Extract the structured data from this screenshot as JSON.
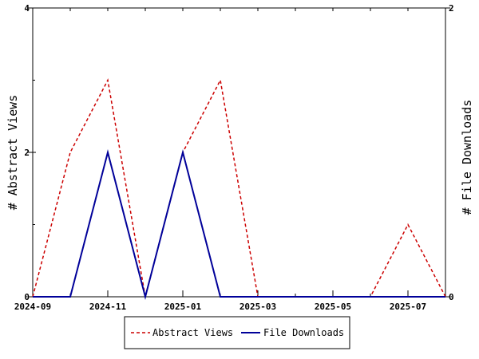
{
  "chart_data": {
    "type": "line",
    "x": [
      "2024-09",
      "2024-10",
      "2024-11",
      "2024-12",
      "2025-01",
      "2025-02",
      "2025-03",
      "2025-04",
      "2025-05",
      "2025-06",
      "2025-07",
      "2025-08"
    ],
    "x_tick_labels": [
      "2024-09",
      "2024-11",
      "2025-01",
      "2025-03",
      "2025-05",
      "2025-07"
    ],
    "series": [
      {
        "name": "Abstract Views",
        "axis": "left",
        "color": "#cc0000",
        "dash": "dashed",
        "values": [
          0,
          2,
          3,
          0,
          2,
          3,
          0,
          0,
          0,
          0,
          1,
          0
        ]
      },
      {
        "name": "File Downloads",
        "axis": "right",
        "color": "#000099",
        "dash": "solid",
        "values": [
          0,
          0,
          1,
          0,
          1,
          0,
          0,
          0,
          0,
          0,
          0,
          0
        ]
      }
    ],
    "ylabel": "# Abstract Views",
    "ylabel_right": "# File Downloads",
    "ylim": [
      0,
      4
    ],
    "ylim_right": [
      0,
      2
    ],
    "y_ticks": [
      "0",
      "2",
      "4"
    ],
    "y_ticks_right": [
      "0",
      "2"
    ],
    "grid": false,
    "legend_position": "bottom"
  }
}
